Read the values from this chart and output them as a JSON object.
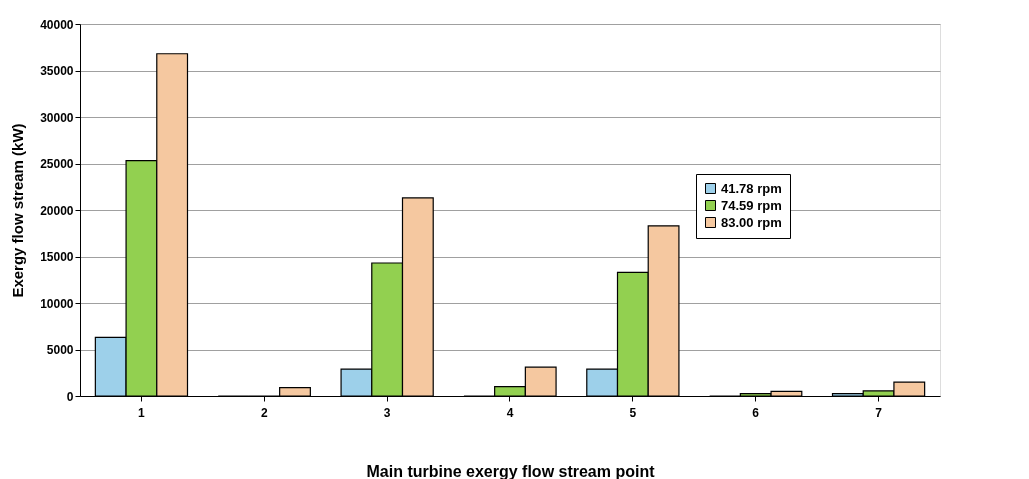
{
  "chart_data": {
    "type": "bar",
    "xlabel": "Main turbine exergy flow stream point",
    "ylabel": "Exergy flow stream (kW)",
    "categories": [
      "1",
      "2",
      "3",
      "4",
      "5",
      "6",
      "7"
    ],
    "series": [
      {
        "name": "41.78 rpm",
        "color": "#9dd0ea",
        "values": [
          6300,
          0,
          2900,
          0,
          2900,
          0,
          250
        ]
      },
      {
        "name": "74.59 rpm",
        "color": "#92d050",
        "values": [
          25300,
          0,
          14300,
          1000,
          13300,
          250,
          550
        ]
      },
      {
        "name": "83.00 rpm",
        "color": "#f5c8a0",
        "values": [
          36800,
          900,
          21300,
          3100,
          18300,
          500,
          1500
        ]
      }
    ],
    "ylim": [
      0,
      40000
    ],
    "yticks": [
      0,
      5000,
      10000,
      15000,
      20000,
      25000,
      30000,
      35000,
      40000
    ],
    "grid": "y",
    "legend": "top right"
  }
}
